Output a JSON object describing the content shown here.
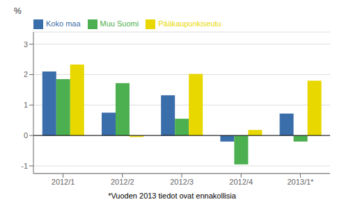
{
  "chart_data": {
    "type": "bar",
    "ylabel": "%",
    "footnote": "*Vuoden 2013 tiedot ovat ennakollisia",
    "categories": [
      "2012/1",
      "2012/2",
      "2012/3",
      "2012/4",
      "2013/1*"
    ],
    "series": [
      {
        "name": "Koko maa",
        "color": "#3a6eaa",
        "values": [
          2.1,
          0.75,
          1.32,
          -0.2,
          0.72
        ]
      },
      {
        "name": "Muu Suomi",
        "color": "#4caf50",
        "values": [
          1.85,
          1.72,
          0.55,
          -0.95,
          -0.2
        ]
      },
      {
        "name": "Pääkaupunkiseutu",
        "color": "#e8d800",
        "values": [
          2.33,
          -0.05,
          2.02,
          0.18,
          1.8
        ]
      }
    ],
    "ylim": [
      -1.25,
      3.4
    ],
    "yticks": [
      -1,
      0,
      1,
      2,
      3
    ],
    "grid": true,
    "legend": "upper left"
  }
}
